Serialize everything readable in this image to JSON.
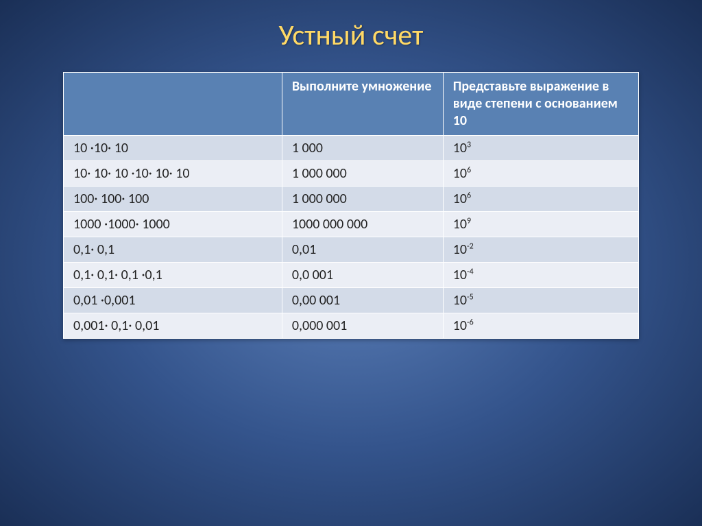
{
  "slide": {
    "title": "Устный счет",
    "background": {
      "center_color": "#5b7fb8",
      "mid_color": "#34548c",
      "edge_color": "#1a2f56"
    },
    "title_style": {
      "color": "#ffd966",
      "fontsize": 42
    }
  },
  "table": {
    "type": "table",
    "header_bg": "#5981b3",
    "header_fg": "#ffffff",
    "row_odd_bg": "#d3dbe8",
    "row_even_bg": "#ebeef5",
    "border_color": "#ffffff",
    "cell_fontsize": 20,
    "header_fontsize": 20,
    "column_widths_pct": [
      38,
      28,
      34
    ],
    "columns": [
      "",
      "Выполните умножение",
      "Представьте выражение в виде степени с основанием 10"
    ],
    "rows": [
      {
        "expr": "10 ·10· 10",
        "product": "1 000",
        "base": "10",
        "exp": "3"
      },
      {
        "expr": "10· 10· 10 ·10· 10·  10",
        "product": "1 000 000",
        "base": "10",
        "exp": "6"
      },
      {
        "expr": "100· 100· 100",
        "product": "1 000 000",
        "base": "10",
        "exp": "6"
      },
      {
        "expr": "1000 ·1000· 1000",
        "product": "1000 000 000",
        "base": "10",
        "exp": "9"
      },
      {
        "expr": "0,1· 0,1",
        "product": "0,01",
        "base": "10",
        "exp": "-2"
      },
      {
        "expr": "0,1· 0,1· 0,1 ·0,1",
        "product": "0,0 001",
        "base": "10",
        "exp": "-4"
      },
      {
        "expr": "0,01 ·0,001",
        "product": "0,00 001",
        "base": "10",
        "exp": "-5"
      },
      {
        "expr": "0,001· 0,1· 0,01",
        "product": "0,000 001",
        "base": "10",
        "exp": "-6"
      }
    ]
  }
}
